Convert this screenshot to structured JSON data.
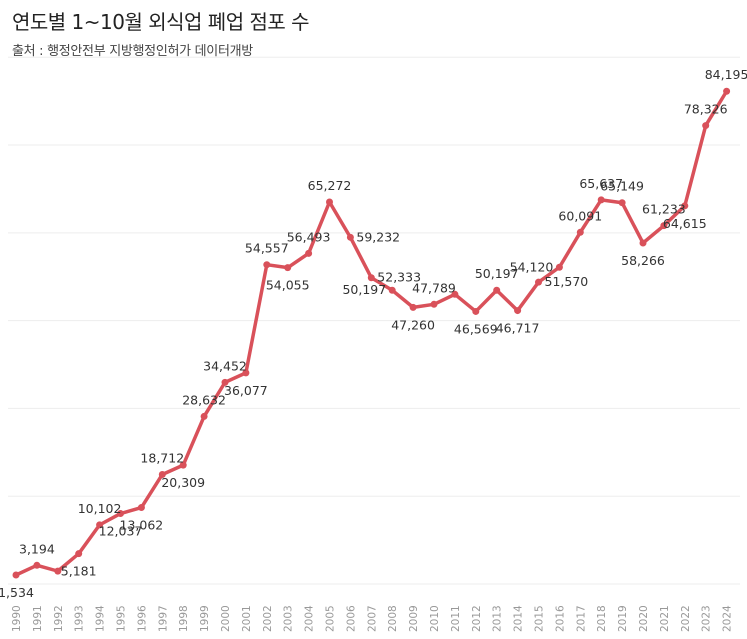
{
  "title": "연도별 1~10월 외식업 폐업 점포 수",
  "subtitle": "출처 : 행정안전부 지방행정인허가 데이터개방",
  "colors": {
    "line": "#d9515a",
    "grid": "#ededed",
    "tick": "#999999",
    "label": "#333333"
  },
  "chart_data": {
    "type": "line",
    "title": "연도별 1~10월 외식업 폐업 점포 수",
    "subtitle": "출처 : 행정안전부 지방행정인허가 데이터개방",
    "xlabel": "",
    "ylabel": "",
    "ylim": [
      0,
      95000
    ],
    "grid": true,
    "legend": "none",
    "categories": [
      "1990",
      "1991",
      "1992",
      "1993",
      "1994",
      "1995",
      "1996",
      "1997",
      "1998",
      "1999",
      "2000",
      "2001",
      "2002",
      "2003",
      "2004",
      "2005",
      "2006",
      "2007",
      "2008",
      "2009",
      "2010",
      "2011",
      "2012",
      "2013",
      "2014",
      "2015",
      "2016",
      "2017",
      "2018",
      "2019",
      "2020",
      "2021",
      "2022",
      "2023",
      "2024"
    ],
    "values": [
      1534,
      3194,
      2200,
      5181,
      10102,
      12037,
      13062,
      18712,
      20309,
      28632,
      34452,
      36077,
      54557,
      54055,
      56493,
      65272,
      59232,
      52333,
      50197,
      47260,
      47789,
      49500,
      46569,
      50197,
      46717,
      51570,
      54120,
      60091,
      65637,
      65149,
      58266,
      61233,
      64615,
      78326,
      84195
    ],
    "data_labels": [
      "1,534",
      "3,194",
      "",
      "5,181",
      "10,102",
      "12,037",
      "13,062",
      "18,712",
      "20,309",
      "28,632",
      "34,452",
      "36,077",
      "54,557",
      "54,055",
      "56,493",
      "65,272",
      "59,232",
      "52,333",
      "50,197",
      "47,260",
      "47,789",
      "",
      "46,569",
      "50,197",
      "46,717",
      "51,570",
      "54,120",
      "60,091",
      "65,637",
      "65,149",
      "58,266",
      "61,233",
      "64,615",
      "78,326",
      "84,195"
    ],
    "label_positions": [
      "below",
      "above",
      "",
      "below",
      "above",
      "below",
      "below",
      "above",
      "below",
      "above",
      "above",
      "below",
      "above",
      "below",
      "above",
      "above",
      "right",
      "right",
      "left",
      "below",
      "above",
      "",
      "below",
      "above",
      "below",
      "right",
      "left",
      "above",
      "above",
      "above",
      "below",
      "above",
      "below",
      "above",
      "above"
    ]
  }
}
